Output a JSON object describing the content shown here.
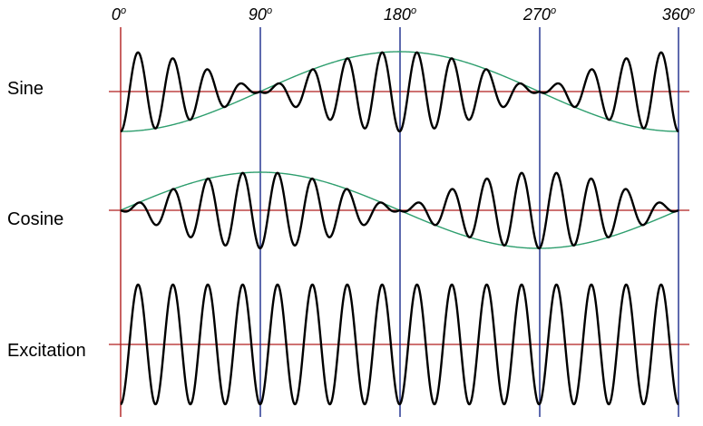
{
  "degree_labels": [
    {
      "deg": "0",
      "sym": "o"
    },
    {
      "deg": "90",
      "sym": "o"
    },
    {
      "deg": "180",
      "sym": "o"
    },
    {
      "deg": "270",
      "sym": "o"
    },
    {
      "deg": "360",
      "sym": "o"
    }
  ],
  "rows": [
    {
      "id": "sine",
      "label": "Sine"
    },
    {
      "id": "cosine",
      "label": "Cosine"
    },
    {
      "id": "excitation",
      "label": "Excitation"
    }
  ],
  "colors": {
    "baseline": "#b01e1e",
    "gridline": "#1a2a8c",
    "wave": "#000000",
    "envelope": "#2e9e6e"
  },
  "carrier_cycles_per_360": 16,
  "envelope_cycles_per_360": 1
}
